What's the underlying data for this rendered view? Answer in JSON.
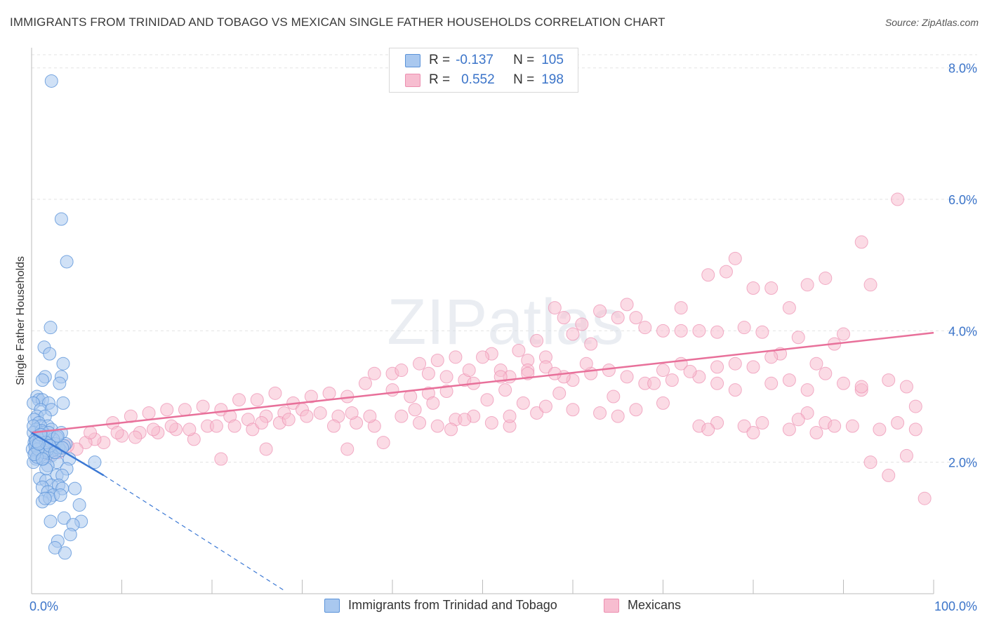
{
  "title": "IMMIGRANTS FROM TRINIDAD AND TOBAGO VS MEXICAN SINGLE FATHER HOUSEHOLDS CORRELATION CHART",
  "source": "Source: ZipAtlas.com",
  "watermark": "ZIPatlas",
  "legend": {
    "blue": {
      "r_label": "R =",
      "r_value": "-0.137",
      "n_label": "N =",
      "n_value": "105"
    },
    "pink": {
      "r_label": "R =",
      "r_value": "0.552",
      "n_label": "N =",
      "n_value": "198"
    }
  },
  "bottom_legend": {
    "blue": "Immigrants from Trinidad and Tobago",
    "pink": "Mexicans"
  },
  "colors": {
    "blue_fill": "#a9c8ef",
    "blue_stroke": "#5b93d9",
    "blue_line": "#3b78d4",
    "pink_fill": "#f7bdd0",
    "pink_stroke": "#ec8fb0",
    "pink_line": "#e8709a",
    "axis_text": "#3b74c9"
  },
  "chart_data": {
    "type": "scatter",
    "title": "IMMIGRANTS FROM TRINIDAD AND TOBAGO VS MEXICAN SINGLE FATHER HOUSEHOLDS CORRELATION CHART",
    "xlabel": "",
    "ylabel": "Single Father Households",
    "xlim": [
      0,
      100
    ],
    "ylim": [
      0,
      8.2
    ],
    "x_tick_labels": {
      "left": "0.0%",
      "right": "100.0%"
    },
    "y_ticks": [
      {
        "value": 2,
        "label": "2.0%"
      },
      {
        "value": 4,
        "label": "4.0%"
      },
      {
        "value": 6,
        "label": "6.0%"
      },
      {
        "value": 8,
        "label": "8.0%"
      }
    ],
    "series": [
      {
        "name": "Immigrants from Trinidad and Tobago",
        "color_key": "blue",
        "trend": {
          "x0": 0,
          "y0": 2.45,
          "x_solid_end": 8.0,
          "y_solid_end": 1.8,
          "x_dash_end": 28.0,
          "y_dash_end": 0.05
        },
        "points": [
          [
            2.2,
            7.8
          ],
          [
            3.3,
            5.7
          ],
          [
            3.9,
            5.05
          ],
          [
            2.1,
            4.05
          ],
          [
            1.4,
            3.75
          ],
          [
            2.0,
            3.65
          ],
          [
            3.5,
            3.5
          ],
          [
            1.5,
            3.3
          ],
          [
            1.2,
            3.25
          ],
          [
            3.3,
            3.3
          ],
          [
            3.1,
            3.2
          ],
          [
            0.6,
            3.0
          ],
          [
            0.8,
            2.95
          ],
          [
            1.2,
            2.95
          ],
          [
            1.9,
            2.9
          ],
          [
            3.5,
            2.9
          ],
          [
            0.2,
            2.9
          ],
          [
            1.0,
            2.8
          ],
          [
            2.2,
            2.8
          ],
          [
            0.6,
            2.7
          ],
          [
            1.5,
            2.7
          ],
          [
            0.3,
            2.65
          ],
          [
            0.8,
            2.6
          ],
          [
            1.8,
            2.55
          ],
          [
            1.0,
            2.55
          ],
          [
            2.2,
            2.5
          ],
          [
            0.5,
            2.5
          ],
          [
            3.3,
            2.45
          ],
          [
            0.2,
            2.45
          ],
          [
            1.3,
            2.45
          ],
          [
            0.7,
            2.4
          ],
          [
            1.7,
            2.4
          ],
          [
            2.8,
            2.38
          ],
          [
            0.4,
            2.35
          ],
          [
            1.0,
            2.33
          ],
          [
            0.3,
            2.3
          ],
          [
            2.0,
            2.3
          ],
          [
            3.8,
            2.28
          ],
          [
            1.5,
            2.25
          ],
          [
            0.6,
            2.25
          ],
          [
            0.1,
            2.2
          ],
          [
            2.5,
            2.2
          ],
          [
            1.1,
            2.2
          ],
          [
            3.2,
            2.18
          ],
          [
            0.4,
            2.15
          ],
          [
            1.8,
            2.15
          ],
          [
            0.8,
            2.12
          ],
          [
            2.2,
            2.1
          ],
          [
            4.2,
            2.05
          ],
          [
            0.5,
            2.05
          ],
          [
            1.3,
            2.05
          ],
          [
            7.0,
            2.0
          ],
          [
            0.2,
            2.0
          ],
          [
            2.8,
            2.0
          ],
          [
            1.8,
            1.95
          ],
          [
            1.6,
            1.9
          ],
          [
            3.9,
            1.9
          ],
          [
            2.8,
            1.8
          ],
          [
            3.4,
            1.8
          ],
          [
            0.9,
            1.75
          ],
          [
            1.6,
            1.72
          ],
          [
            2.2,
            1.65
          ],
          [
            3.0,
            1.65
          ],
          [
            4.8,
            1.6
          ],
          [
            1.2,
            1.62
          ],
          [
            1.8,
            1.55
          ],
          [
            3.4,
            1.6
          ],
          [
            2.4,
            1.5
          ],
          [
            1.2,
            1.4
          ],
          [
            2.0,
            1.45
          ],
          [
            3.2,
            1.5
          ],
          [
            1.5,
            1.45
          ],
          [
            5.3,
            1.35
          ],
          [
            2.1,
            1.1
          ],
          [
            3.6,
            1.15
          ],
          [
            5.5,
            1.1
          ],
          [
            4.6,
            1.05
          ],
          [
            4.3,
            0.9
          ],
          [
            2.9,
            0.8
          ],
          [
            2.6,
            0.7
          ],
          [
            3.7,
            0.62
          ],
          [
            0.4,
            2.25
          ],
          [
            1.7,
            2.18
          ],
          [
            2.6,
            2.28
          ],
          [
            0.9,
            2.38
          ],
          [
            3.0,
            2.22
          ],
          [
            1.4,
            2.15
          ],
          [
            0.6,
            2.08
          ],
          [
            2.4,
            2.35
          ],
          [
            3.6,
            2.25
          ],
          [
            1.1,
            2.48
          ],
          [
            0.2,
            2.55
          ],
          [
            1.9,
            2.45
          ],
          [
            2.9,
            2.4
          ],
          [
            0.7,
            2.2
          ],
          [
            1.6,
            2.3
          ],
          [
            0.3,
            2.12
          ],
          [
            2.0,
            2.25
          ],
          [
            1.2,
            2.05
          ],
          [
            0.5,
            2.32
          ],
          [
            3.4,
            2.22
          ],
          [
            2.6,
            2.15
          ],
          [
            1.0,
            2.42
          ],
          [
            0.8,
            2.28
          ]
        ]
      },
      {
        "name": "Mexicans",
        "color_key": "pink",
        "trend": {
          "x0": 0,
          "y0": 2.45,
          "x1": 100,
          "y1": 3.97
        },
        "points": [
          [
            96,
            6.0
          ],
          [
            92,
            5.35
          ],
          [
            78,
            5.1
          ],
          [
            77,
            4.9
          ],
          [
            75,
            4.85
          ],
          [
            88,
            4.8
          ],
          [
            86,
            4.7
          ],
          [
            82,
            4.65
          ],
          [
            93,
            4.7
          ],
          [
            80,
            4.65
          ],
          [
            66,
            4.4
          ],
          [
            72,
            4.35
          ],
          [
            84,
            4.35
          ],
          [
            58,
            4.35
          ],
          [
            67,
            4.2
          ],
          [
            59,
            4.2
          ],
          [
            63,
            4.3
          ],
          [
            65,
            4.2
          ],
          [
            68,
            4.05
          ],
          [
            72,
            4.0
          ],
          [
            74,
            4.0
          ],
          [
            70,
            4.0
          ],
          [
            61,
            4.1
          ],
          [
            76,
            3.98
          ],
          [
            79,
            4.05
          ],
          [
            81,
            3.98
          ],
          [
            60,
            3.95
          ],
          [
            62,
            3.8
          ],
          [
            56,
            3.85
          ],
          [
            54,
            3.7
          ],
          [
            57,
            3.6
          ],
          [
            55,
            3.55
          ],
          [
            51,
            3.65
          ],
          [
            50,
            3.6
          ],
          [
            47,
            3.6
          ],
          [
            45,
            3.55
          ],
          [
            43,
            3.5
          ],
          [
            40,
            3.35
          ],
          [
            38,
            3.35
          ],
          [
            41,
            3.4
          ],
          [
            44,
            3.35
          ],
          [
            46,
            3.3
          ],
          [
            48,
            3.25
          ],
          [
            52,
            3.4
          ],
          [
            53,
            3.3
          ],
          [
            55,
            3.4
          ],
          [
            57,
            3.45
          ],
          [
            60,
            3.25
          ],
          [
            64,
            3.4
          ],
          [
            66,
            3.3
          ],
          [
            68,
            3.2
          ],
          [
            70,
            3.4
          ],
          [
            72,
            3.5
          ],
          [
            74,
            3.3
          ],
          [
            76,
            3.2
          ],
          [
            78,
            3.1
          ],
          [
            80,
            3.45
          ],
          [
            82,
            3.2
          ],
          [
            84,
            3.25
          ],
          [
            86,
            3.1
          ],
          [
            88,
            3.35
          ],
          [
            90,
            3.2
          ],
          [
            92,
            3.1
          ],
          [
            95,
            3.25
          ],
          [
            97,
            3.15
          ],
          [
            98,
            2.85
          ],
          [
            92,
            3.15
          ],
          [
            87,
            3.5
          ],
          [
            89,
            3.8
          ],
          [
            90,
            3.95
          ],
          [
            85,
            3.9
          ],
          [
            83,
            3.65
          ],
          [
            82,
            3.6
          ],
          [
            78,
            3.5
          ],
          [
            76,
            3.45
          ],
          [
            73,
            3.38
          ],
          [
            71,
            3.25
          ],
          [
            69,
            3.2
          ],
          [
            62,
            3.35
          ],
          [
            59,
            3.3
          ],
          [
            58,
            3.35
          ],
          [
            55,
            3.35
          ],
          [
            52,
            3.3
          ],
          [
            49,
            3.2
          ],
          [
            46,
            3.08
          ],
          [
            44,
            3.05
          ],
          [
            42,
            3.0
          ],
          [
            40,
            3.1
          ],
          [
            37,
            3.2
          ],
          [
            35,
            3.0
          ],
          [
            33,
            3.05
          ],
          [
            31,
            3.0
          ],
          [
            29,
            2.9
          ],
          [
            27,
            3.05
          ],
          [
            25,
            2.95
          ],
          [
            23,
            2.95
          ],
          [
            21,
            2.8
          ],
          [
            19,
            2.85
          ],
          [
            17,
            2.8
          ],
          [
            15,
            2.8
          ],
          [
            13,
            2.75
          ],
          [
            11,
            2.7
          ],
          [
            9,
            2.6
          ],
          [
            22,
            2.7
          ],
          [
            24,
            2.65
          ],
          [
            26,
            2.7
          ],
          [
            28,
            2.75
          ],
          [
            30,
            2.8
          ],
          [
            32,
            2.75
          ],
          [
            34,
            2.7
          ],
          [
            36,
            2.6
          ],
          [
            38,
            2.55
          ],
          [
            41,
            2.7
          ],
          [
            43,
            2.6
          ],
          [
            45,
            2.55
          ],
          [
            47,
            2.65
          ],
          [
            49,
            2.7
          ],
          [
            51,
            2.6
          ],
          [
            53,
            2.55
          ],
          [
            56,
            2.75
          ],
          [
            60,
            2.8
          ],
          [
            63,
            2.75
          ],
          [
            67,
            2.8
          ],
          [
            70,
            2.9
          ],
          [
            74,
            2.55
          ],
          [
            76,
            2.6
          ],
          [
            79,
            2.55
          ],
          [
            81,
            2.6
          ],
          [
            84,
            2.5
          ],
          [
            86,
            2.75
          ],
          [
            88,
            2.6
          ],
          [
            91,
            2.55
          ],
          [
            94,
            2.5
          ],
          [
            96,
            2.6
          ],
          [
            98,
            2.5
          ],
          [
            93,
            2.0
          ],
          [
            95,
            1.8
          ],
          [
            97,
            2.1
          ],
          [
            99,
            1.45
          ],
          [
            89,
            2.55
          ],
          [
            87,
            2.45
          ],
          [
            85,
            2.65
          ],
          [
            80,
            2.45
          ],
          [
            75,
            2.5
          ],
          [
            65,
            2.7
          ],
          [
            57,
            2.85
          ],
          [
            53,
            2.7
          ],
          [
            48,
            2.65
          ],
          [
            39,
            2.3
          ],
          [
            35,
            2.2
          ],
          [
            26,
            2.2
          ],
          [
            21,
            2.05
          ],
          [
            18,
            2.35
          ],
          [
            16,
            2.5
          ],
          [
            14,
            2.45
          ],
          [
            12,
            2.45
          ],
          [
            10,
            2.4
          ],
          [
            8,
            2.3
          ],
          [
            7,
            2.35
          ],
          [
            6,
            2.3
          ],
          [
            5,
            2.2
          ],
          [
            4,
            2.25
          ],
          [
            3,
            2.15
          ],
          [
            2,
            2.1
          ],
          [
            1,
            2.15
          ],
          [
            6.5,
            2.45
          ],
          [
            9.5,
            2.45
          ],
          [
            11.5,
            2.38
          ],
          [
            13.5,
            2.5
          ],
          [
            15.5,
            2.55
          ],
          [
            17.5,
            2.5
          ],
          [
            19.5,
            2.55
          ],
          [
            20.5,
            2.55
          ],
          [
            22.5,
            2.55
          ],
          [
            24.5,
            2.5
          ],
          [
            25.5,
            2.6
          ],
          [
            27.5,
            2.6
          ],
          [
            28.5,
            2.65
          ],
          [
            30.5,
            2.7
          ],
          [
            33.5,
            2.55
          ],
          [
            35.5,
            2.75
          ],
          [
            37.5,
            2.7
          ],
          [
            42.5,
            2.8
          ],
          [
            44.5,
            2.9
          ],
          [
            46.5,
            2.5
          ],
          [
            50.5,
            2.95
          ],
          [
            54.5,
            2.9
          ],
          [
            48.5,
            3.4
          ],
          [
            52.5,
            3.1
          ],
          [
            58.5,
            3.05
          ],
          [
            61.5,
            3.5
          ],
          [
            64.5,
            3.0
          ]
        ]
      }
    ]
  }
}
